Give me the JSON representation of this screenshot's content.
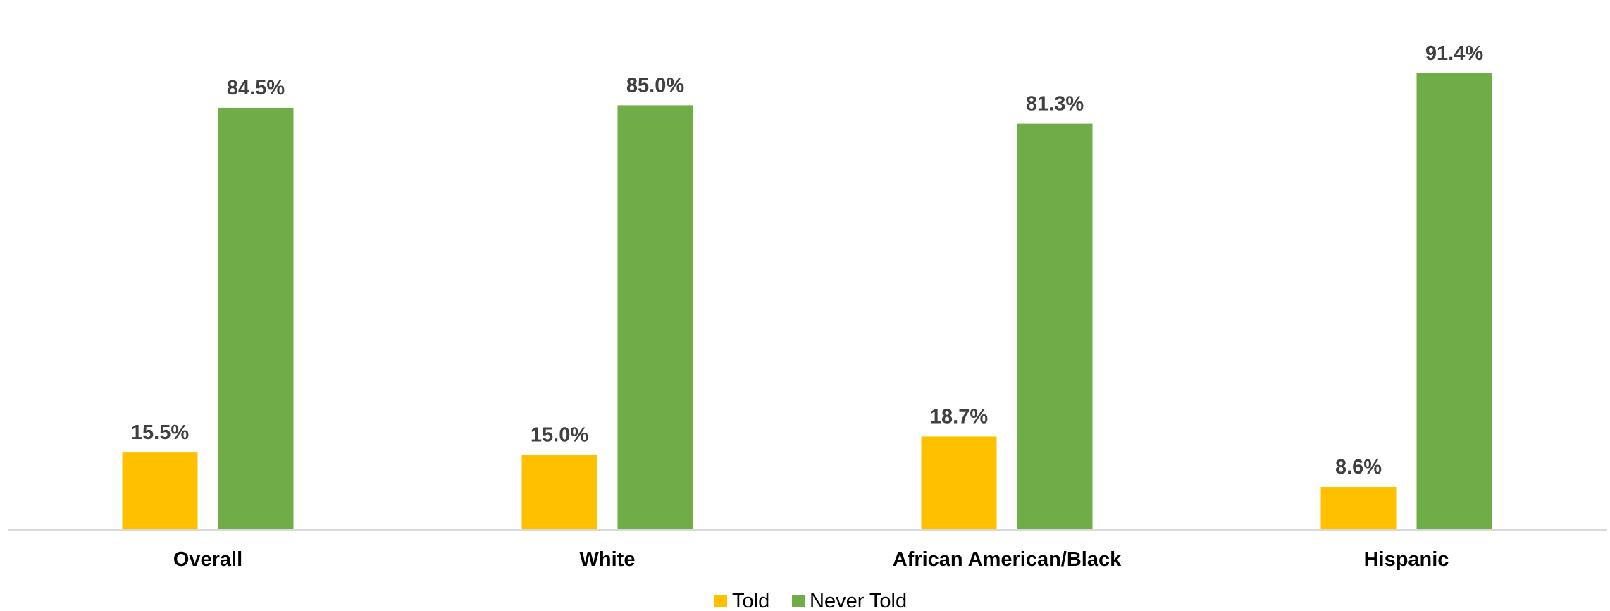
{
  "chart_data": {
    "type": "bar",
    "categories": [
      "Overall",
      "White",
      "African American/Black",
      "Hispanic"
    ],
    "series": [
      {
        "name": "Told",
        "values": [
          15.5,
          15.0,
          18.7,
          8.6
        ],
        "labels": [
          "15.5%",
          "15.0%",
          "18.7%",
          "8.6%"
        ],
        "color": "#FFC000"
      },
      {
        "name": "Never Told",
        "values": [
          84.5,
          85.0,
          81.3,
          91.4
        ],
        "labels": [
          "84.5%",
          "85.0%",
          "81.3%",
          "91.4%"
        ],
        "color": "#70AD47"
      }
    ],
    "ylim": [
      0,
      100
    ],
    "grid": false,
    "legend_position": "bottom",
    "axis_color": "#D9D9D9"
  }
}
